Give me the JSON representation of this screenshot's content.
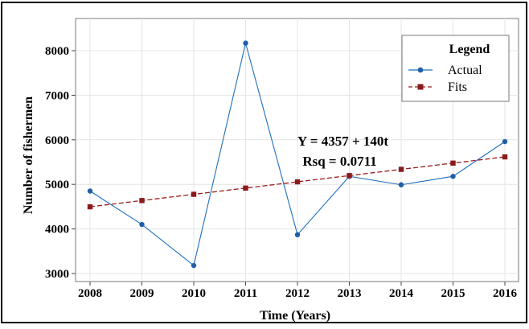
{
  "chart_data": {
    "type": "line",
    "xlabel": "Time (Years)",
    "ylabel": "Number of fishermen",
    "categories": [
      "2008",
      "2009",
      "2010",
      "2011",
      "2012",
      "2013",
      "2014",
      "2015",
      "2016"
    ],
    "x": [
      2008,
      2009,
      2010,
      2011,
      2012,
      2013,
      2014,
      2015,
      2016
    ],
    "xlim": [
      2008,
      2016
    ],
    "ylim": [
      2900,
      8300
    ],
    "yticks": [
      3000,
      4000,
      5000,
      6000,
      7000,
      8000
    ],
    "grid": "vertical-and-horizontal",
    "legend": {
      "title": "Legend",
      "placement": "top-right",
      "entries": [
        "Actual",
        "Fits"
      ]
    },
    "series": [
      {
        "name": "Actual",
        "style": "solid-line-circle-markers",
        "color": "#1f6fbf",
        "values": [
          4850,
          4100,
          3180,
          8170,
          3870,
          5180,
          4990,
          5180,
          5960
        ]
      },
      {
        "name": "Fits",
        "style": "dashed-line-square-markers",
        "color": "#9b1c1c",
        "values": [
          4497,
          4637,
          4777,
          4917,
          5057,
          5197,
          5337,
          5477,
          5617
        ]
      }
    ],
    "annotations": [
      {
        "text": "Y = 4357 + 140t",
        "anchor_x": 2013,
        "anchor_y": 5980
      },
      {
        "text": "Rsq = 0.0711",
        "anchor_x": 2013,
        "anchor_y": 5530
      }
    ]
  }
}
